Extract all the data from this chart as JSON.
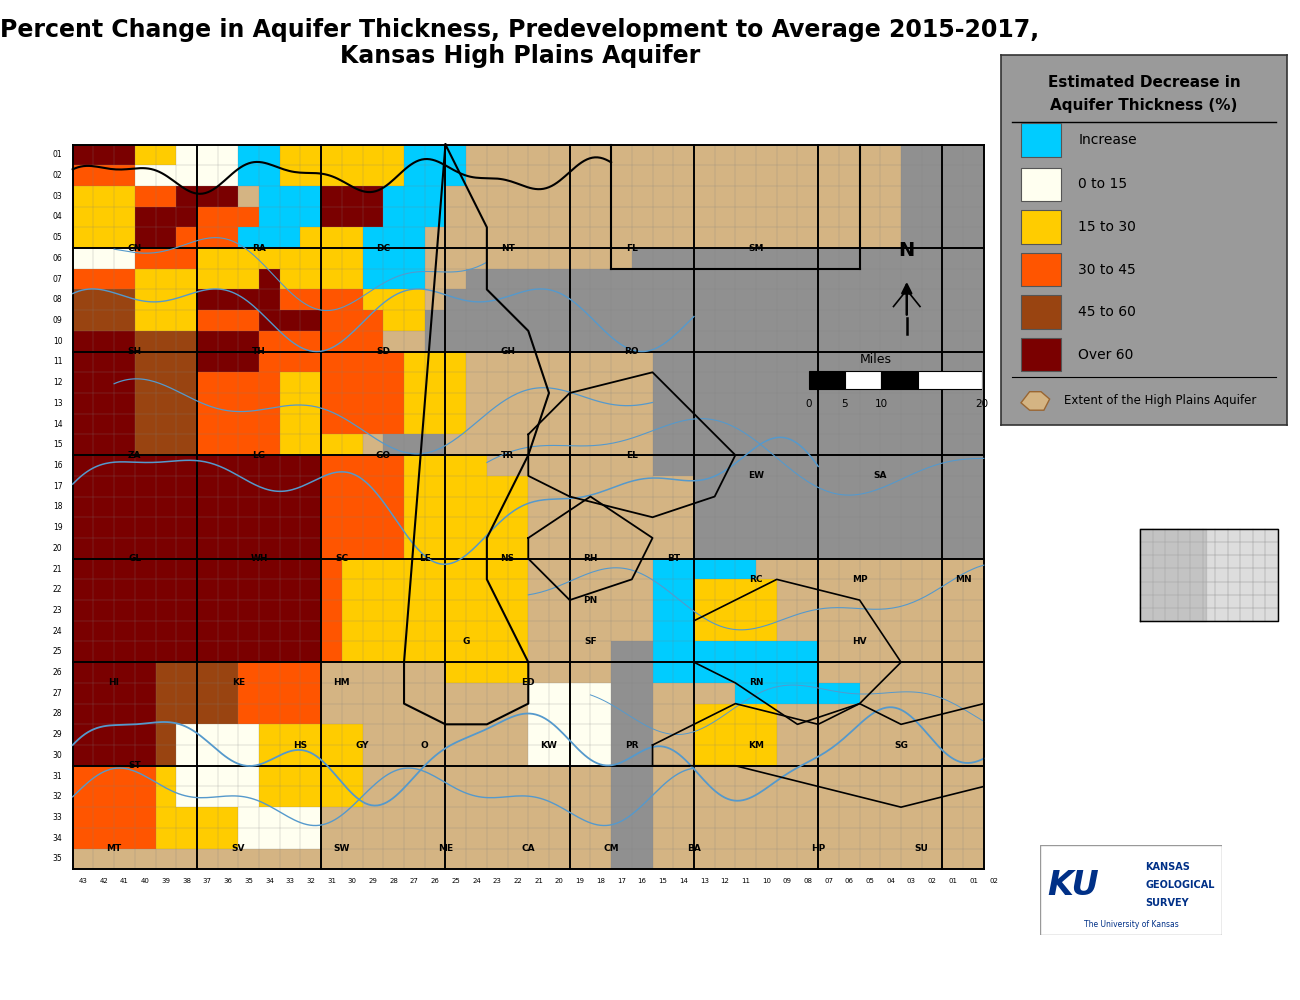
{
  "title_line1": "Percent Change in Aquifer Thickness, Predevelopment to Average 2015-2017,",
  "title_line2": "Kansas High Plains Aquifer",
  "title_fontsize": 17,
  "title_fontweight": "bold",
  "background_color": "#ffffff",
  "map_bg_color": "#909090",
  "fine_grid_color": "#808080",
  "county_grid_color": "#000000",
  "legend_colors": [
    "#00ccff",
    "#fffff0",
    "#ffcc00",
    "#ff5500",
    "#994411",
    "#7a0000"
  ],
  "legend_labels": [
    "Increase",
    "0 to 15",
    "15 to 30",
    "30 to 45",
    "45 to 60",
    "Over 60"
  ],
  "legend_title_line1": "Estimated Decrease in",
  "legend_title_line2": "Aquifer Thickness (%)",
  "aquifer_tan": "#d4b483",
  "river_color": "#5599cc",
  "county_border_color": "#000000",
  "legend_bg_color": "#9a9a9a",
  "ku_logo_color": "#003087",
  "n_rows": 35,
  "n_cols": 44
}
